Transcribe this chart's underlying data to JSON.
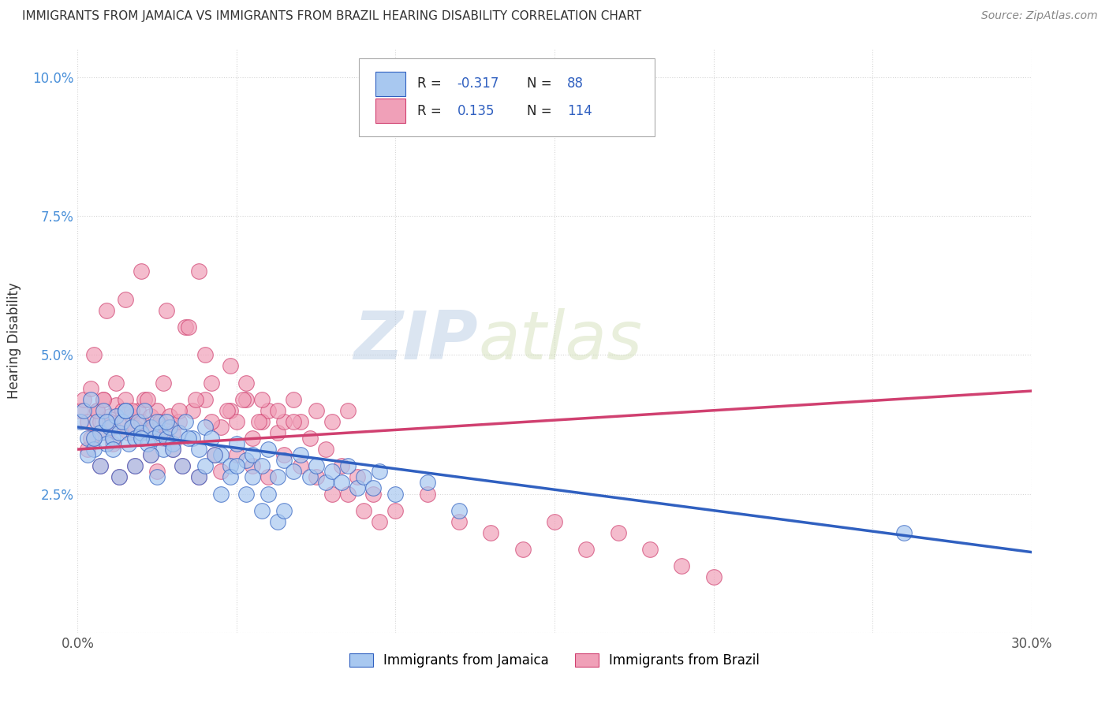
{
  "title": "IMMIGRANTS FROM JAMAICA VS IMMIGRANTS FROM BRAZIL HEARING DISABILITY CORRELATION CHART",
  "source": "Source: ZipAtlas.com",
  "ylabel": "Hearing Disability",
  "xlim": [
    0.0,
    0.3
  ],
  "ylim": [
    0.0,
    0.105
  ],
  "xticks": [
    0.0,
    0.05,
    0.1,
    0.15,
    0.2,
    0.25,
    0.3
  ],
  "xticklabels": [
    "0.0%",
    "",
    "",
    "",
    "",
    "",
    "30.0%"
  ],
  "yticks": [
    0.0,
    0.025,
    0.05,
    0.075,
    0.1
  ],
  "yticklabels": [
    "",
    "2.5%",
    "5.0%",
    "7.5%",
    "10.0%"
  ],
  "jamaica_color": "#a8c8f0",
  "brazil_color": "#f0a0b8",
  "jamaica_line_color": "#3060c0",
  "brazil_line_color": "#d04070",
  "tick_color": "#4a90d9",
  "R_jamaica": -0.317,
  "N_jamaica": 88,
  "R_brazil": 0.135,
  "N_brazil": 114,
  "legend_jamaica": "Immigrants from Jamaica",
  "legend_brazil": "Immigrants from Brazil",
  "background_color": "#ffffff",
  "grid_color": "#cccccc",
  "watermark_color": "#d0dff0",
  "jamaica_scatter_x": [
    0.001,
    0.002,
    0.003,
    0.004,
    0.005,
    0.006,
    0.007,
    0.008,
    0.009,
    0.01,
    0.011,
    0.012,
    0.013,
    0.014,
    0.015,
    0.016,
    0.017,
    0.018,
    0.019,
    0.02,
    0.021,
    0.022,
    0.023,
    0.024,
    0.025,
    0.026,
    0.027,
    0.028,
    0.029,
    0.03,
    0.032,
    0.034,
    0.036,
    0.038,
    0.04,
    0.042,
    0.045,
    0.048,
    0.05,
    0.053,
    0.055,
    0.058,
    0.06,
    0.063,
    0.065,
    0.068,
    0.07,
    0.073,
    0.075,
    0.078,
    0.08,
    0.083,
    0.085,
    0.088,
    0.09,
    0.093,
    0.095,
    0.1,
    0.11,
    0.12,
    0.003,
    0.005,
    0.007,
    0.009,
    0.011,
    0.013,
    0.015,
    0.018,
    0.02,
    0.023,
    0.025,
    0.028,
    0.03,
    0.033,
    0.035,
    0.038,
    0.04,
    0.043,
    0.045,
    0.048,
    0.05,
    0.053,
    0.055,
    0.058,
    0.06,
    0.063,
    0.065,
    0.26
  ],
  "jamaica_scatter_y": [
    0.038,
    0.04,
    0.035,
    0.042,
    0.033,
    0.038,
    0.036,
    0.04,
    0.034,
    0.037,
    0.035,
    0.039,
    0.036,
    0.038,
    0.04,
    0.034,
    0.037,
    0.035,
    0.038,
    0.036,
    0.04,
    0.034,
    0.037,
    0.035,
    0.038,
    0.036,
    0.033,
    0.035,
    0.037,
    0.034,
    0.036,
    0.038,
    0.035,
    0.033,
    0.037,
    0.035,
    0.032,
    0.03,
    0.034,
    0.031,
    0.032,
    0.03,
    0.033,
    0.028,
    0.031,
    0.029,
    0.032,
    0.028,
    0.03,
    0.027,
    0.029,
    0.027,
    0.03,
    0.026,
    0.028,
    0.026,
    0.029,
    0.025,
    0.027,
    0.022,
    0.032,
    0.035,
    0.03,
    0.038,
    0.033,
    0.028,
    0.04,
    0.03,
    0.035,
    0.032,
    0.028,
    0.038,
    0.033,
    0.03,
    0.035,
    0.028,
    0.03,
    0.032,
    0.025,
    0.028,
    0.03,
    0.025,
    0.028,
    0.022,
    0.025,
    0.02,
    0.022,
    0.018
  ],
  "brazil_scatter_x": [
    0.001,
    0.002,
    0.003,
    0.004,
    0.005,
    0.006,
    0.007,
    0.008,
    0.009,
    0.01,
    0.011,
    0.012,
    0.013,
    0.014,
    0.015,
    0.016,
    0.017,
    0.018,
    0.019,
    0.02,
    0.021,
    0.022,
    0.023,
    0.024,
    0.025,
    0.026,
    0.027,
    0.028,
    0.029,
    0.03,
    0.032,
    0.034,
    0.036,
    0.038,
    0.04,
    0.042,
    0.045,
    0.048,
    0.05,
    0.053,
    0.055,
    0.058,
    0.06,
    0.063,
    0.065,
    0.068,
    0.07,
    0.075,
    0.08,
    0.085,
    0.003,
    0.005,
    0.007,
    0.009,
    0.011,
    0.013,
    0.015,
    0.018,
    0.02,
    0.023,
    0.025,
    0.028,
    0.03,
    0.033,
    0.035,
    0.038,
    0.04,
    0.043,
    0.045,
    0.048,
    0.05,
    0.053,
    0.055,
    0.058,
    0.06,
    0.063,
    0.065,
    0.068,
    0.07,
    0.073,
    0.075,
    0.078,
    0.08,
    0.083,
    0.085,
    0.088,
    0.09,
    0.093,
    0.095,
    0.1,
    0.11,
    0.12,
    0.13,
    0.14,
    0.15,
    0.16,
    0.17,
    0.18,
    0.19,
    0.2,
    0.004,
    0.006,
    0.008,
    0.01,
    0.012,
    0.017,
    0.022,
    0.027,
    0.032,
    0.037,
    0.042,
    0.047,
    0.052,
    0.057
  ],
  "brazil_scatter_y": [
    0.04,
    0.042,
    0.038,
    0.044,
    0.035,
    0.04,
    0.038,
    0.042,
    0.036,
    0.039,
    0.037,
    0.041,
    0.038,
    0.04,
    0.042,
    0.036,
    0.039,
    0.037,
    0.04,
    0.038,
    0.042,
    0.036,
    0.039,
    0.037,
    0.04,
    0.038,
    0.035,
    0.037,
    0.039,
    0.036,
    0.038,
    0.055,
    0.04,
    0.065,
    0.042,
    0.045,
    0.037,
    0.04,
    0.038,
    0.042,
    0.035,
    0.038,
    0.04,
    0.036,
    0.038,
    0.042,
    0.038,
    0.04,
    0.038,
    0.04,
    0.033,
    0.05,
    0.03,
    0.058,
    0.034,
    0.028,
    0.06,
    0.03,
    0.065,
    0.032,
    0.029,
    0.058,
    0.033,
    0.03,
    0.055,
    0.028,
    0.05,
    0.032,
    0.029,
    0.048,
    0.032,
    0.045,
    0.03,
    0.042,
    0.028,
    0.04,
    0.032,
    0.038,
    0.03,
    0.035,
    0.028,
    0.033,
    0.025,
    0.03,
    0.025,
    0.028,
    0.022,
    0.025,
    0.02,
    0.022,
    0.025,
    0.02,
    0.018,
    0.015,
    0.02,
    0.015,
    0.018,
    0.015,
    0.012,
    0.01,
    0.035,
    0.04,
    0.042,
    0.038,
    0.045,
    0.04,
    0.042,
    0.045,
    0.04,
    0.042,
    0.038,
    0.04,
    0.042,
    0.038
  ]
}
